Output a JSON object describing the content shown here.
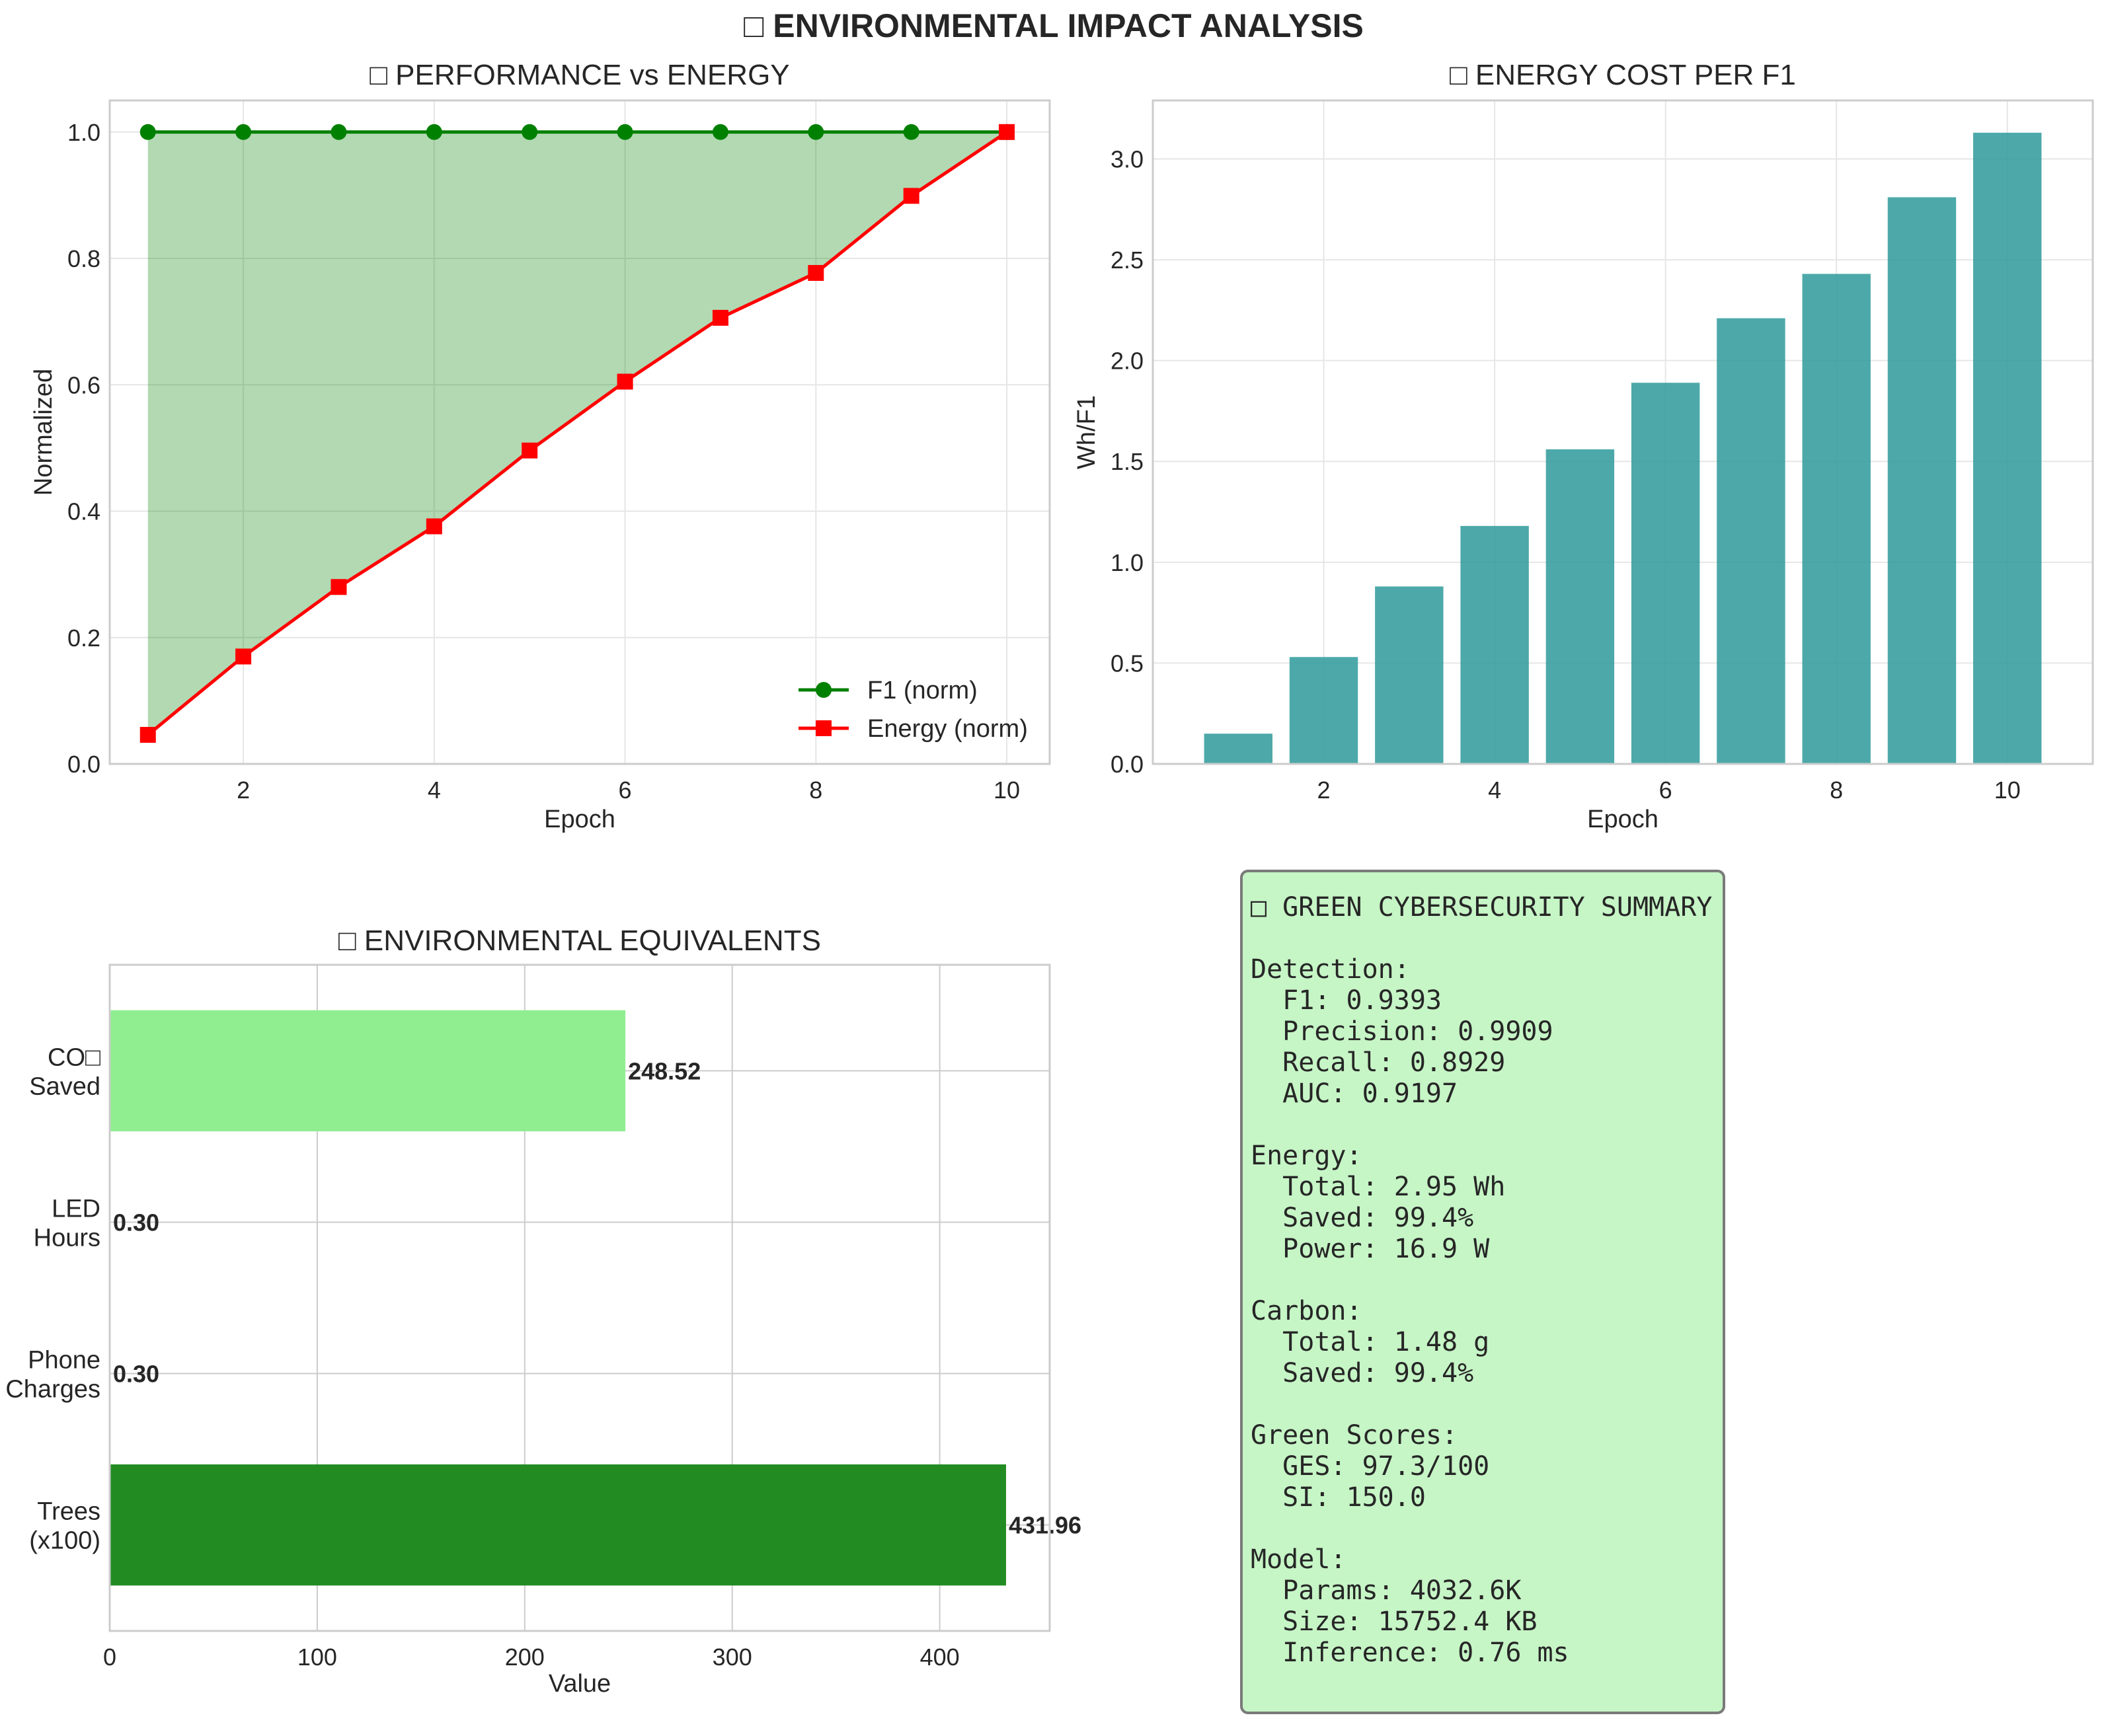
{
  "figure": {
    "title": "□ ENVIRONMENTAL IMPACT ANALYSIS"
  },
  "chart_data": [
    {
      "type": "line",
      "title": "□ PERFORMANCE vs ENERGY",
      "xlabel": "Epoch",
      "ylabel": "Normalized",
      "x": [
        1,
        2,
        3,
        4,
        5,
        6,
        7,
        8,
        9,
        10
      ],
      "xlim": [
        0.6,
        10.45
      ],
      "ylim": [
        0,
        1.05
      ],
      "xticks": [
        2,
        4,
        6,
        8,
        10
      ],
      "yticks": [
        0.0,
        0.2,
        0.4,
        0.6,
        0.8,
        1.0
      ],
      "grid": true,
      "legend_position": "bottom-right",
      "fill_between": true,
      "series": [
        {
          "name": "F1 (norm)",
          "color": "#008000",
          "marker": "circle",
          "values": [
            1.0,
            1.0,
            1.0,
            1.0,
            1.0,
            1.0,
            1.0,
            1.0,
            1.0,
            1.0
          ]
        },
        {
          "name": "Energy (norm)",
          "color": "#ff0000",
          "marker": "square",
          "values": [
            0.046,
            0.17,
            0.28,
            0.376,
            0.496,
            0.605,
            0.706,
            0.777,
            0.899,
            1.0
          ]
        }
      ]
    },
    {
      "type": "bar",
      "title": "□ ENERGY COST PER F1",
      "xlabel": "Epoch",
      "ylabel": "Wh/F1",
      "categories": [
        1,
        2,
        3,
        4,
        5,
        6,
        7,
        8,
        9,
        10
      ],
      "values": [
        0.15,
        0.53,
        0.88,
        1.18,
        1.56,
        1.89,
        2.21,
        2.43,
        2.81,
        3.13
      ],
      "xlim": [
        0.0,
        11.0
      ],
      "ylim": [
        0,
        3.29
      ],
      "xticks": [
        2,
        4,
        6,
        8,
        10
      ],
      "yticks": [
        0.0,
        0.5,
        1.0,
        1.5,
        2.0,
        2.5,
        3.0
      ],
      "grid": true,
      "color": "#2e9a9a"
    },
    {
      "type": "bar",
      "orientation": "horizontal",
      "title": "□ ENVIRONMENTAL EQUIVALENTS",
      "xlabel": "Value",
      "ylabel": "",
      "categories": [
        {
          "line1": "CO□",
          "line2": "Saved"
        },
        {
          "line1": "LED",
          "line2": "Hours"
        },
        {
          "line1": "Phone",
          "line2": "Charges"
        },
        {
          "line1": "Trees",
          "line2": "(x100)"
        }
      ],
      "values": [
        248.52,
        0.3,
        0.3,
        431.96
      ],
      "value_labels": [
        "248.52",
        "0.30",
        "0.30",
        "431.96"
      ],
      "colors": [
        "#90ee90",
        "#87ceeb",
        "#ffd700",
        "#228b22"
      ],
      "xlim": [
        0,
        453
      ],
      "xticks": [
        0,
        100,
        200,
        300,
        400
      ],
      "grid": true
    }
  ],
  "summary": {
    "lines": [
      "□ GREEN CYBERSECURITY SUMMARY",
      "",
      "Detection:",
      "  F1: 0.9393",
      "  Precision: 0.9909",
      "  Recall: 0.8929",
      "  AUC: 0.9197",
      "",
      "Energy:",
      "  Total: 2.95 Wh",
      "  Saved: 99.4%",
      "  Power: 16.9 W",
      "",
      "Carbon:",
      "  Total: 1.48 g",
      "  Saved: 99.4%",
      "",
      "Green Scores:",
      "  GES: 97.3/100",
      "  SI: 150.0",
      "",
      "Model:",
      "  Params: 4032.6K",
      "  Size: 15752.4 KB",
      "  Inference: 0.76 ms"
    ]
  }
}
